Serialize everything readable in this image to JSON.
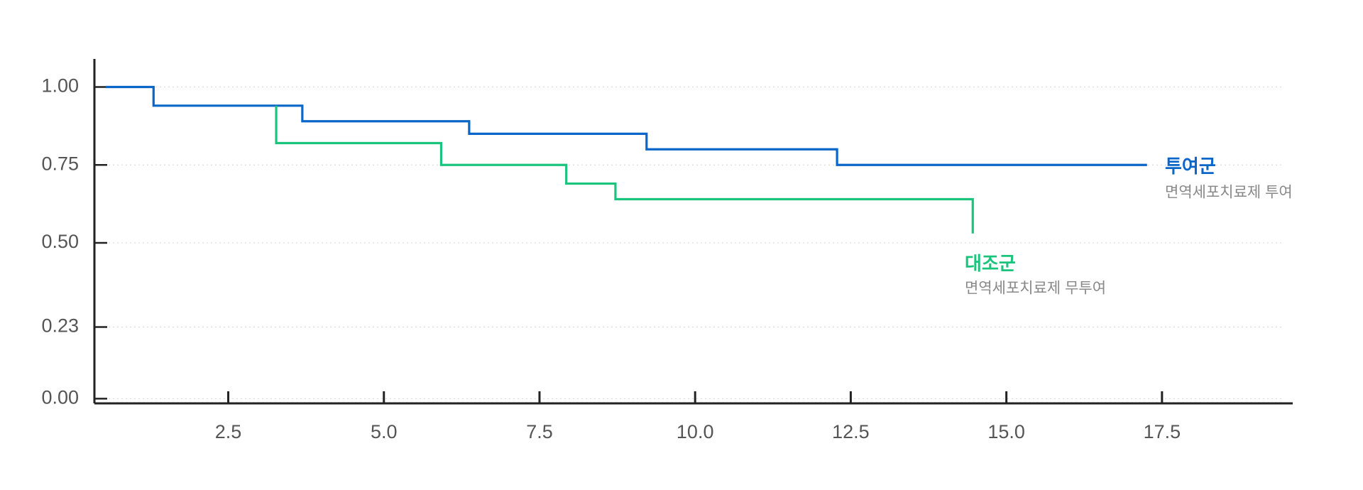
{
  "chart_data": {
    "type": "step",
    "xlim": [
      0.35,
      19.6
    ],
    "ylim": [
      -0.015,
      1.09
    ],
    "xticks": [
      2.5,
      {
        "value": 5,
        "label": "5.0"
      },
      7.5,
      {
        "value": 10,
        "label": "10.0"
      },
      12.5,
      {
        "value": 15,
        "label": "15.0"
      },
      17.5
    ],
    "yticks": [
      {
        "value": 0,
        "label": "0.00"
      },
      0.23,
      {
        "value": 0.5,
        "label": "0.50"
      },
      0.75,
      {
        "value": 1,
        "label": "1.00"
      }
    ],
    "grid": true,
    "series": [
      {
        "name": "투여군",
        "description": "면역세포치료제 투여",
        "color": "#0a66c8",
        "x": [
          0.53,
          1.3,
          3.69,
          6.37,
          9.22,
          12.28,
          17.26
        ],
        "values": [
          1.0,
          0.94,
          0.89,
          0.85,
          0.8,
          0.75,
          0.75
        ]
      },
      {
        "name": "대조군",
        "description": "면역세포치료제 무투여",
        "color": "#1bc47d",
        "x": [
          3.27,
          3.27,
          5.92,
          7.93,
          8.72,
          14.46
        ],
        "values": [
          0.94,
          0.82,
          0.75,
          0.69,
          0.64,
          0.53
        ]
      }
    ]
  }
}
